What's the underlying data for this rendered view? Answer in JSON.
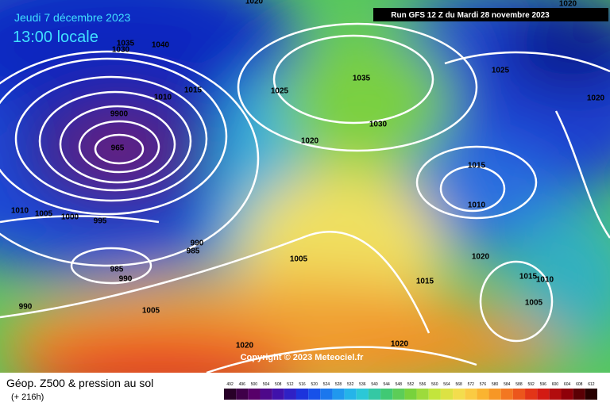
{
  "header": {
    "date": "Jeudi 7 décembre 2023",
    "time": "13:00 locale",
    "run": "Run GFS 12 Z du Mardi 28 novembre 2023"
  },
  "copyright": "Copyright © 2023 Meteociel.fr",
  "legend": {
    "title": "Géop. Z500 & pression au sol",
    "lead": "(+ 216h)",
    "colorbar": [
      492,
      496,
      500,
      504,
      508,
      512,
      516,
      520,
      524,
      528,
      532,
      536,
      540,
      544,
      548,
      552,
      556,
      560,
      564,
      568,
      572,
      576,
      580,
      584,
      588,
      592,
      596,
      600,
      604,
      608,
      612
    ]
  },
  "isobar_labels": [
    "1035",
    "1030",
    "1040",
    "1020",
    "1010",
    "1015",
    "1025",
    "1035",
    "1030",
    "1020",
    "1025",
    "1020",
    "1015",
    "1010",
    "9900",
    "965",
    "1010",
    "1005",
    "1000",
    "995",
    "990",
    "985",
    "985",
    "990",
    "1005",
    "1015",
    "1020",
    "1015",
    "1010",
    "1005",
    "990",
    "1005",
    "1020",
    "1020",
    "1020"
  ]
}
